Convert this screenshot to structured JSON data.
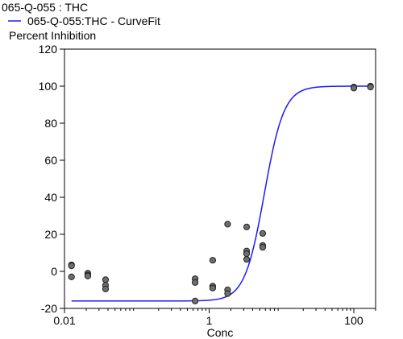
{
  "chart_data": {
    "type": "scatter",
    "title": "065-Q-055  : THC",
    "legend": {
      "placement": "top-left",
      "entries": [
        {
          "label": "065-Q-055:THC - CurveFit",
          "color": "#1a1aff",
          "kind": "line"
        }
      ]
    },
    "xlabel": "Conc",
    "ylabel": "Percent Inhibition",
    "x_scale": "log",
    "xlim": [
      0.01,
      200
    ],
    "ylim": [
      -20,
      120
    ],
    "x_ticks": [
      {
        "value": 0.01,
        "label": "0.01"
      },
      {
        "value": 1,
        "label": "1"
      },
      {
        "value": 100,
        "label": "100"
      }
    ],
    "y_ticks": [
      {
        "value": -20,
        "label": "-20"
      },
      {
        "value": 0,
        "label": "0"
      },
      {
        "value": 20,
        "label": "20"
      },
      {
        "value": 40,
        "label": "40"
      },
      {
        "value": 60,
        "label": "60"
      },
      {
        "value": 80,
        "label": "80"
      },
      {
        "value": 100,
        "label": "100"
      },
      {
        "value": 120,
        "label": "120"
      }
    ],
    "grid": false,
    "points": [
      {
        "x": 0.0125,
        "y": 3.5
      },
      {
        "x": 0.0125,
        "y": 3
      },
      {
        "x": 0.0125,
        "y": -3
      },
      {
        "x": 0.021,
        "y": -1
      },
      {
        "x": 0.021,
        "y": -2
      },
      {
        "x": 0.021,
        "y": -2.5
      },
      {
        "x": 0.037,
        "y": -4.5
      },
      {
        "x": 0.037,
        "y": -7.5
      },
      {
        "x": 0.037,
        "y": -9.5
      },
      {
        "x": 0.64,
        "y": -4
      },
      {
        "x": 0.64,
        "y": -6
      },
      {
        "x": 0.64,
        "y": -16
      },
      {
        "x": 1.12,
        "y": 6
      },
      {
        "x": 1.12,
        "y": -8
      },
      {
        "x": 1.12,
        "y": -9
      },
      {
        "x": 1.8,
        "y": 25.5
      },
      {
        "x": 1.8,
        "y": -10
      },
      {
        "x": 1.8,
        "y": -12
      },
      {
        "x": 3.3,
        "y": 24
      },
      {
        "x": 3.3,
        "y": 11
      },
      {
        "x": 3.3,
        "y": 9.5
      },
      {
        "x": 3.3,
        "y": 6.5
      },
      {
        "x": 5.5,
        "y": 20.5
      },
      {
        "x": 5.5,
        "y": 14
      },
      {
        "x": 5.5,
        "y": 13
      },
      {
        "x": 100,
        "y": 99.5
      },
      {
        "x": 100,
        "y": 99
      },
      {
        "x": 170,
        "y": 100
      },
      {
        "x": 170,
        "y": 99.5
      }
    ],
    "curve_fit": {
      "model": "4PL",
      "bottom": -16,
      "top": 100,
      "ec50": 5.8,
      "hill": 3.2,
      "color": "#1a1aff"
    },
    "point_color": "#6e6e6e"
  }
}
